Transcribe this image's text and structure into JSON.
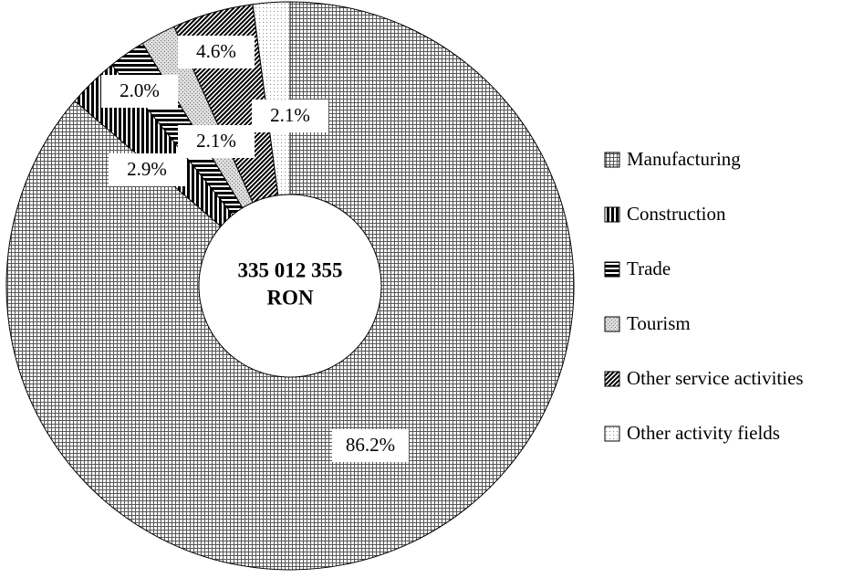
{
  "chart_data": {
    "type": "donut",
    "center_label": [
      "335 012 355",
      "RON"
    ],
    "categories": [
      "Manufacturing",
      "Construction",
      "Trade",
      "Tourism",
      "Other service activities",
      "Other activity fields"
    ],
    "values": [
      86.2,
      2.9,
      2.1,
      2.0,
      4.6,
      2.1
    ],
    "value_labels": [
      "86.2%",
      "2.9%",
      "2.1%",
      "2.0%",
      "4.6%",
      "2.1%"
    ],
    "legend": "right"
  }
}
